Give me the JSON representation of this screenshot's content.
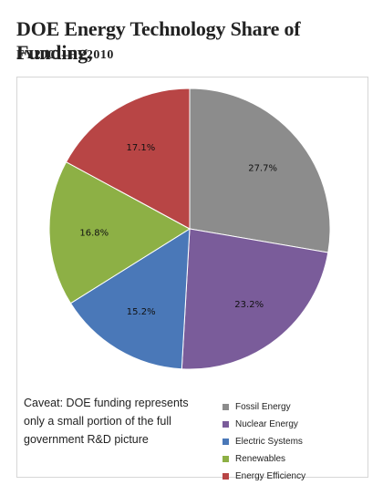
{
  "title": "DOE Energy Technology Share of Funding,",
  "subtitle": "FY2001–FY2010",
  "caveat": "Caveat: DOE funding represents only a small portion of the full government R&D picture",
  "chart_data": {
    "type": "pie",
    "categories": [
      "Fossil Energy",
      "Nuclear Energy",
      "Electric Systems",
      "Renewables",
      "Energy Efficiency"
    ],
    "values": [
      27.7,
      23.2,
      15.2,
      16.8,
      17.1
    ],
    "value_labels": [
      "27.7%",
      "23.2%",
      "15.2%",
      "16.8%",
      "17.1%"
    ],
    "colors": [
      "#8c8c8c",
      "#7a5c9a",
      "#4a78b8",
      "#8db045",
      "#b84545"
    ],
    "legend_position": "bottom-right",
    "start_angle": "12 o'clock",
    "direction": "clockwise"
  }
}
